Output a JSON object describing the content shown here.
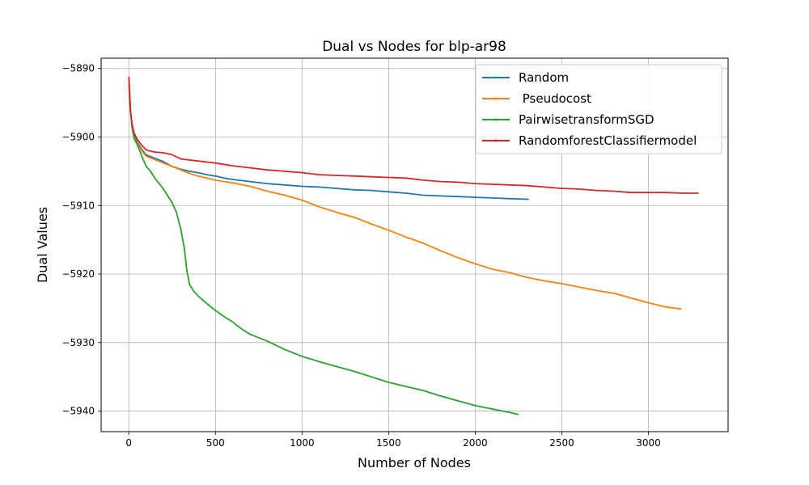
{
  "chart_data": {
    "type": "line",
    "title": "Dual vs Nodes for blp-ar98",
    "xlabel": "Number of Nodes",
    "ylabel": "Dual Values",
    "xlim": [
      -160,
      3460
    ],
    "ylim": [
      -5943,
      -5888.5
    ],
    "xticks": [
      0,
      500,
      1000,
      1500,
      2000,
      2500,
      3000
    ],
    "yticks": [
      -5890,
      -5900,
      -5910,
      -5920,
      -5930,
      -5940
    ],
    "xtick_labels": [
      "0",
      "500",
      "1000",
      "1500",
      "2000",
      "2500",
      "3000"
    ],
    "ytick_labels": [
      "−5890",
      "−5900",
      "−5910",
      "−5920",
      "−5930",
      "−5940"
    ],
    "grid": true,
    "legend_position": "top-right",
    "series": [
      {
        "name": "Random",
        "color": "#1f77b4",
        "x": [
          0,
          5,
          10,
          20,
          30,
          50,
          75,
          100,
          150,
          200,
          250,
          300,
          350,
          400,
          450,
          500,
          550,
          600,
          700,
          800,
          900,
          1000,
          1100,
          1200,
          1300,
          1400,
          1500,
          1600,
          1700,
          1800,
          1900,
          2000,
          2100,
          2200,
          2310
        ],
        "values": [
          -5891.5,
          -5894,
          -5896.5,
          -5898.5,
          -5899.8,
          -5900.8,
          -5901.8,
          -5902.6,
          -5903.1,
          -5903.6,
          -5904.3,
          -5904.7,
          -5905.0,
          -5905.2,
          -5905.5,
          -5905.7,
          -5906.0,
          -5906.2,
          -5906.5,
          -5906.8,
          -5907.0,
          -5907.2,
          -5907.3,
          -5907.5,
          -5907.7,
          -5907.8,
          -5908.0,
          -5908.2,
          -5908.5,
          -5908.6,
          -5908.7,
          -5908.8,
          -5908.9,
          -5909.0,
          -5909.1
        ]
      },
      {
        "name": " Pseudocost",
        "color": "#ff7f0e",
        "x": [
          0,
          5,
          10,
          20,
          30,
          50,
          75,
          100,
          150,
          200,
          250,
          300,
          350,
          400,
          450,
          500,
          550,
          600,
          700,
          800,
          900,
          1000,
          1100,
          1200,
          1300,
          1400,
          1500,
          1600,
          1700,
          1800,
          1900,
          2000,
          2100,
          2200,
          2300,
          2400,
          2500,
          2600,
          2700,
          2800,
          2900,
          3000,
          3100,
          3190
        ],
        "values": [
          -5891.5,
          -5894,
          -5896.5,
          -5898.8,
          -5900.0,
          -5901.0,
          -5902.0,
          -5902.8,
          -5903.3,
          -5903.8,
          -5904.3,
          -5904.8,
          -5905.3,
          -5905.7,
          -5906.0,
          -5906.3,
          -5906.5,
          -5906.7,
          -5907.2,
          -5907.9,
          -5908.5,
          -5909.2,
          -5910.2,
          -5911.0,
          -5911.7,
          -5912.7,
          -5913.6,
          -5914.6,
          -5915.5,
          -5916.6,
          -5917.6,
          -5918.5,
          -5919.3,
          -5919.8,
          -5920.5,
          -5921.0,
          -5921.4,
          -5921.9,
          -5922.4,
          -5922.8,
          -5923.5,
          -5924.2,
          -5924.8,
          -5925.1
        ]
      },
      {
        "name": "PairwisetransformSGD",
        "color": "#2ca02c",
        "x": [
          0,
          5,
          10,
          20,
          30,
          50,
          75,
          100,
          125,
          150,
          200,
          250,
          275,
          300,
          320,
          335,
          350,
          375,
          400,
          450,
          500,
          550,
          600,
          650,
          700,
          800,
          900,
          1000,
          1100,
          1200,
          1300,
          1400,
          1500,
          1600,
          1700,
          1800,
          1900,
          2000,
          2100,
          2200,
          2250
        ],
        "values": [
          -5891.5,
          -5894,
          -5896.5,
          -5898.8,
          -5900.2,
          -5901.2,
          -5902.8,
          -5904.3,
          -5905.0,
          -5906.0,
          -5907.6,
          -5909.6,
          -5911.0,
          -5913.5,
          -5916.2,
          -5919.5,
          -5921.5,
          -5922.5,
          -5923.2,
          -5924.3,
          -5925.3,
          -5926.2,
          -5927.0,
          -5928.0,
          -5928.8,
          -5929.8,
          -5931.0,
          -5932.0,
          -5932.8,
          -5933.5,
          -5934.2,
          -5935.0,
          -5935.8,
          -5936.4,
          -5937.0,
          -5937.8,
          -5938.5,
          -5939.2,
          -5939.7,
          -5940.2,
          -5940.5
        ]
      },
      {
        "name": "RandomforestClassifiermodel",
        "color": "#d62728",
        "x": [
          0,
          5,
          10,
          20,
          30,
          50,
          75,
          100,
          150,
          200,
          250,
          300,
          400,
          500,
          600,
          700,
          800,
          900,
          1000,
          1100,
          1200,
          1300,
          1400,
          1500,
          1600,
          1700,
          1800,
          1900,
          2000,
          2100,
          2200,
          2300,
          2400,
          2500,
          2600,
          2700,
          2800,
          2900,
          3000,
          3100,
          3200,
          3290
        ],
        "values": [
          -5891.2,
          -5893.8,
          -5896.2,
          -5898.3,
          -5899.4,
          -5900.4,
          -5901.2,
          -5901.9,
          -5902.2,
          -5902.3,
          -5902.6,
          -5903.2,
          -5903.5,
          -5903.8,
          -5904.2,
          -5904.5,
          -5904.8,
          -5905.0,
          -5905.2,
          -5905.5,
          -5905.6,
          -5905.7,
          -5905.8,
          -5905.9,
          -5906.0,
          -5906.3,
          -5906.5,
          -5906.6,
          -5906.8,
          -5906.9,
          -5907.0,
          -5907.1,
          -5907.3,
          -5907.5,
          -5907.6,
          -5907.8,
          -5907.9,
          -5908.1,
          -5908.1,
          -5908.1,
          -5908.2,
          -5908.2
        ]
      }
    ]
  }
}
